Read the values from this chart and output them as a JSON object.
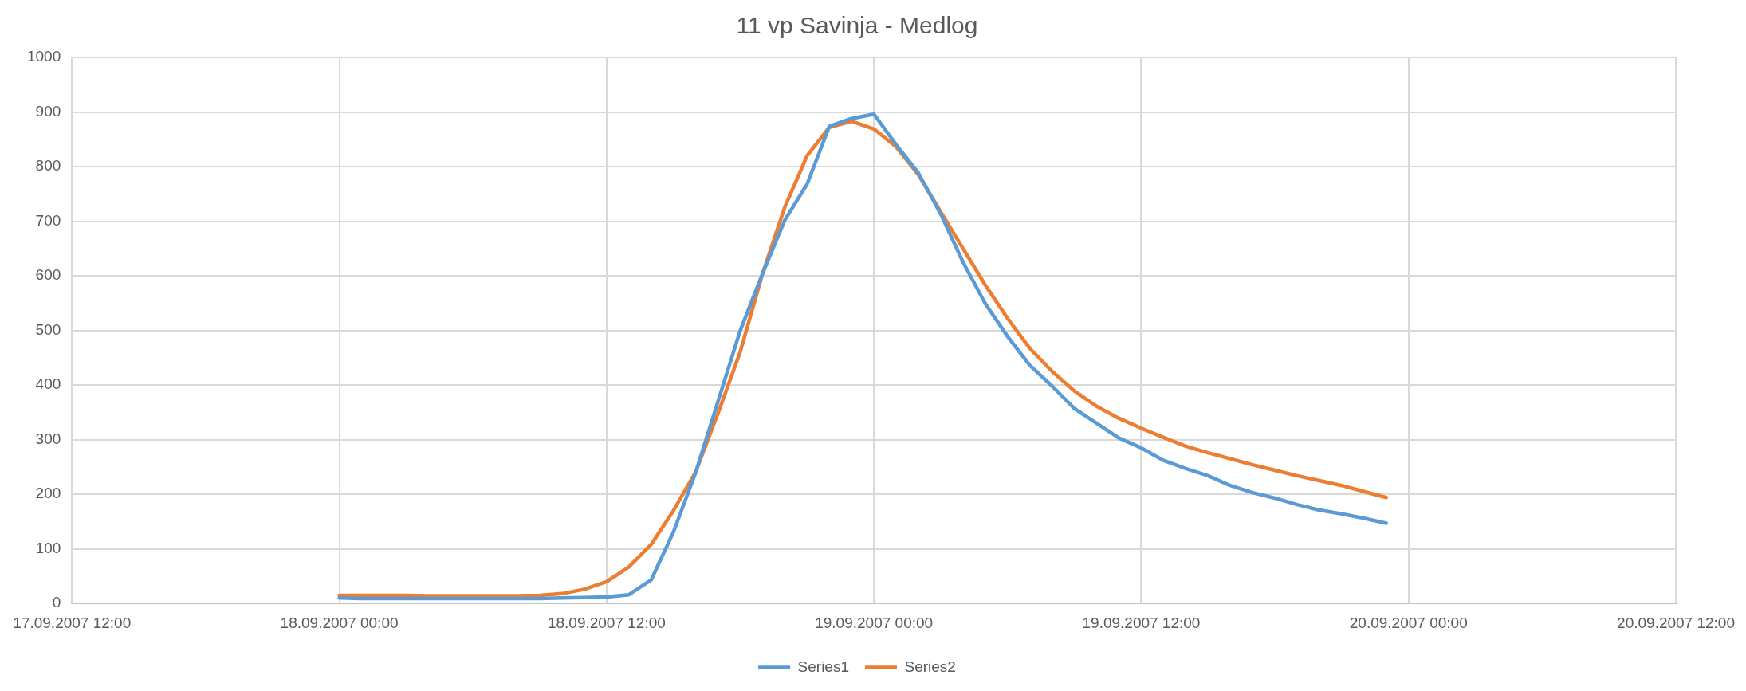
{
  "chart_data": {
    "type": "line",
    "title": "11 vp Savinja - Medlog",
    "x": [
      "2007-09-18T00:00",
      "2007-09-18T01:00",
      "2007-09-18T02:00",
      "2007-09-18T03:00",
      "2007-09-18T04:00",
      "2007-09-18T05:00",
      "2007-09-18T06:00",
      "2007-09-18T07:00",
      "2007-09-18T08:00",
      "2007-09-18T09:00",
      "2007-09-18T10:00",
      "2007-09-18T11:00",
      "2007-09-18T12:00",
      "2007-09-18T13:00",
      "2007-09-18T14:00",
      "2007-09-18T15:00",
      "2007-09-18T16:00",
      "2007-09-18T17:00",
      "2007-09-18T18:00",
      "2007-09-18T19:00",
      "2007-09-18T20:00",
      "2007-09-18T21:00",
      "2007-09-18T22:00",
      "2007-09-18T23:00",
      "2007-09-19T00:00",
      "2007-09-19T01:00",
      "2007-09-19T02:00",
      "2007-09-19T03:00",
      "2007-09-19T04:00",
      "2007-09-19T05:00",
      "2007-09-19T06:00",
      "2007-09-19T07:00",
      "2007-09-19T08:00",
      "2007-09-19T09:00",
      "2007-09-19T10:00",
      "2007-09-19T11:00",
      "2007-09-19T12:00",
      "2007-09-19T13:00",
      "2007-09-19T14:00",
      "2007-09-19T15:00",
      "2007-09-19T16:00",
      "2007-09-19T17:00",
      "2007-09-19T18:00",
      "2007-09-19T19:00",
      "2007-09-19T20:00",
      "2007-09-19T21:00",
      "2007-09-19T22:00",
      "2007-09-19T23:00"
    ],
    "series": [
      {
        "name": "Series1",
        "color": "#5b9bd5",
        "values": [
          10,
          9,
          9,
          9,
          9,
          9,
          9,
          9,
          9,
          9,
          10,
          11,
          12,
          16,
          43,
          131,
          240,
          370,
          500,
          604,
          702,
          768,
          874,
          888,
          896,
          840,
          788,
          713,
          625,
          549,
          489,
          436,
          398,
          357,
          330,
          303,
          285,
          262,
          247,
          234,
          216,
          203,
          193,
          181,
          171,
          164,
          156,
          147
        ]
      },
      {
        "name": "Series2",
        "color": "#ed7d31",
        "values": [
          15,
          15,
          15,
          15,
          14,
          14,
          14,
          14,
          14,
          15,
          18,
          26,
          40,
          67,
          108,
          170,
          241,
          348,
          461,
          604,
          726,
          820,
          872,
          883,
          869,
          836,
          785,
          717,
          650,
          583,
          522,
          467,
          425,
          389,
          361,
          339,
          321,
          304,
          288,
          276,
          265,
          254,
          244,
          234,
          225,
          216,
          205,
          194
        ]
      }
    ],
    "xlim": [
      "2007-09-17T12:00",
      "2007-09-20T12:00"
    ],
    "xticks": [
      {
        "value": "2007-09-17T12:00",
        "label": "17.09.2007 12:00"
      },
      {
        "value": "2007-09-18T00:00",
        "label": "18.09.2007 00:00"
      },
      {
        "value": "2007-09-18T12:00",
        "label": "18.09.2007 12:00"
      },
      {
        "value": "2007-09-19T00:00",
        "label": "19.09.2007 00:00"
      },
      {
        "value": "2007-09-19T12:00",
        "label": "19.09.2007 12:00"
      },
      {
        "value": "2007-09-20T00:00",
        "label": "20.09.2007 00:00"
      },
      {
        "value": "2007-09-20T12:00",
        "label": "20.09.2007 12:00"
      }
    ],
    "ylim": [
      0,
      1000
    ],
    "yticks": [
      0,
      100,
      200,
      300,
      400,
      500,
      600,
      700,
      800,
      900,
      1000
    ],
    "grid": true,
    "legend": "bottom",
    "marker": "none",
    "line_style": "solid"
  }
}
